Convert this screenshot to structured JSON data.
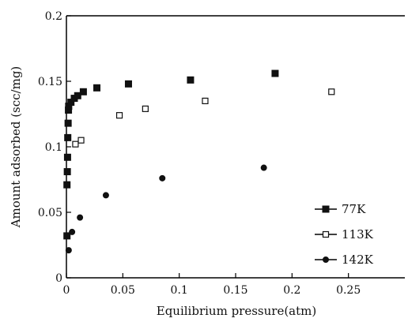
{
  "chart_data": {
    "type": "scatter",
    "title": "",
    "xlabel": "Equilibrium pressure(atm)",
    "ylabel": "Amount adsorbed (scc/mg)",
    "xlim": [
      0,
      0.3
    ],
    "ylim": [
      0,
      0.2
    ],
    "xticks": [
      "0",
      "0.05",
      "0.1",
      "0.15",
      "0.2",
      "0.25"
    ],
    "yticks": [
      "0",
      "0.05",
      "0.1",
      "0.15",
      "0.2"
    ],
    "xtick_values": [
      0,
      0.05,
      0.1,
      0.15,
      0.2,
      0.25
    ],
    "ytick_values": [
      0,
      0.05,
      0.1,
      0.15,
      0.2
    ],
    "grid": false,
    "legend_position": "bottom-right",
    "series": [
      {
        "name": "77K",
        "marker": "filled-square",
        "x": [
          0.0005,
          0.0005,
          0.0008,
          0.001,
          0.0012,
          0.0015,
          0.0018,
          0.002,
          0.004,
          0.007,
          0.01,
          0.015,
          0.027,
          0.055,
          0.11,
          0.185
        ],
        "y": [
          0.032,
          0.071,
          0.081,
          0.092,
          0.107,
          0.118,
          0.128,
          0.131,
          0.134,
          0.137,
          0.139,
          0.142,
          0.145,
          0.148,
          0.151,
          0.156
        ]
      },
      {
        "name": "113K",
        "marker": "open-square",
        "x": [
          0.008,
          0.013,
          0.047,
          0.07,
          0.123,
          0.235
        ],
        "y": [
          0.102,
          0.105,
          0.124,
          0.129,
          0.135,
          0.142
        ]
      },
      {
        "name": "142K",
        "marker": "filled-circle",
        "x": [
          0.002,
          0.005,
          0.012,
          0.035,
          0.085,
          0.175
        ],
        "y": [
          0.021,
          0.035,
          0.046,
          0.063,
          0.076,
          0.084
        ]
      }
    ]
  }
}
